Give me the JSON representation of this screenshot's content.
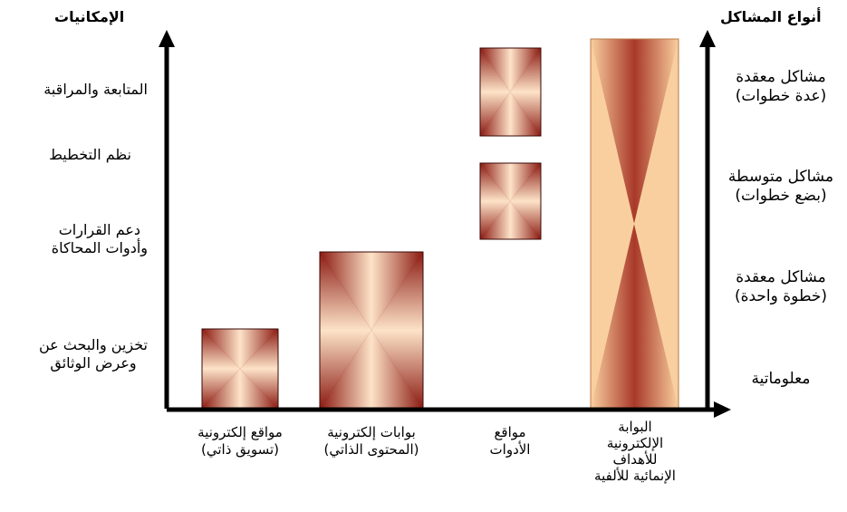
{
  "left_axis_title": "الإمكانيات",
  "right_axis_title": "أنواع المشاكل",
  "left_labels": [
    {
      "lines": [
        "المتابعة والمراقبة"
      ]
    },
    {
      "lines": [
        "نظم التخطيط"
      ]
    },
    {
      "lines": [
        "دعم القرارات",
        "وأدوات المحاكاة"
      ]
    },
    {
      "lines": [
        "تخزين والبحث عن",
        "وعرض الوثائق"
      ]
    }
  ],
  "right_labels": [
    {
      "lines": [
        "مشاكل معقدة",
        "(عدة خطوات)"
      ]
    },
    {
      "lines": [
        "مشاكل متوسطة",
        "(بضع خطوات)"
      ]
    },
    {
      "lines": [
        "مشاكل معقدة",
        "(خطوة واحدة)"
      ]
    },
    {
      "lines": [
        "معلوماتية"
      ]
    }
  ],
  "bottom_labels": [
    {
      "lines": [
        "مواقع إلكترونية",
        "(تسويق ذاتي)"
      ]
    },
    {
      "lines": [
        "بوابات إلكترونية",
        "(المحتوى الذاتي)"
      ]
    },
    {
      "lines": [
        "مواقع",
        "الأدوات"
      ]
    },
    {
      "lines": [
        "البوابة",
        "الإلكترونية",
        "للأهداف",
        "الإنمائية للألفية"
      ]
    }
  ],
  "colors": {
    "axis": "#000000",
    "box_dark": "#8b1a12",
    "box_mid": "#c98a6a",
    "box_light": "#fde3c8",
    "portal_fill": "#f9cf9f",
    "portal_dark": "#a0281c"
  }
}
